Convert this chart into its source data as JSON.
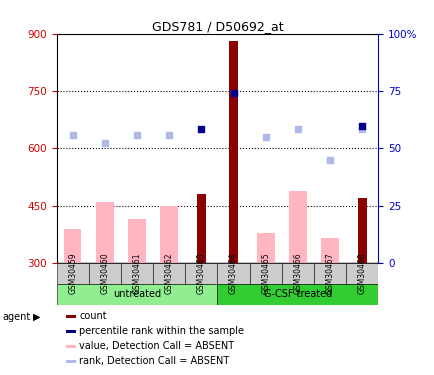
{
  "title": "GDS781 / D50692_at",
  "samples": [
    "GSM30459",
    "GSM30460",
    "GSM30461",
    "GSM30462",
    "GSM30463",
    "GSM30464",
    "GSM30465",
    "GSM30466",
    "GSM30467",
    "GSM30468"
  ],
  "groups": [
    {
      "label": "untreated",
      "indices": [
        0,
        1,
        2,
        3,
        4
      ],
      "color": "#90ee90"
    },
    {
      "label": "G-CSF treated",
      "indices": [
        5,
        6,
        7,
        8,
        9
      ],
      "color": "#32cd32"
    }
  ],
  "count_values": [
    null,
    null,
    null,
    null,
    480,
    880,
    null,
    null,
    null,
    470
  ],
  "value_absent": [
    390,
    460,
    415,
    450,
    null,
    null,
    380,
    490,
    365,
    null
  ],
  "rank_absent": [
    635,
    615,
    635,
    635,
    null,
    null,
    630,
    650,
    570,
    650
  ],
  "percentile_rank": [
    null,
    null,
    null,
    null,
    650,
    745,
    null,
    null,
    null,
    660
  ],
  "ylim_left": [
    300,
    900
  ],
  "ylim_right": [
    0,
    100
  ],
  "yticks_left": [
    300,
    450,
    600,
    750,
    900
  ],
  "yticks_right": [
    0,
    25,
    50,
    75,
    100
  ],
  "ytick_labels_right": [
    "0",
    "25",
    "50",
    "75",
    "100%"
  ],
  "hlines": [
    450,
    600,
    750
  ],
  "count_color": "#8b0000",
  "value_absent_color": "#ffb6c1",
  "rank_absent_color": "#b0b8e8",
  "percentile_color": "#00008b",
  "left_axis_color": "#cc0000",
  "right_axis_color": "#0000cc",
  "agent_label": "agent",
  "legend_items": [
    {
      "label": "count",
      "color": "#8b0000"
    },
    {
      "label": "percentile rank within the sample",
      "color": "#00008b"
    },
    {
      "label": "value, Detection Call = ABSENT",
      "color": "#ffb6c1"
    },
    {
      "label": "rank, Detection Call = ABSENT",
      "color": "#b0b8e8"
    }
  ]
}
